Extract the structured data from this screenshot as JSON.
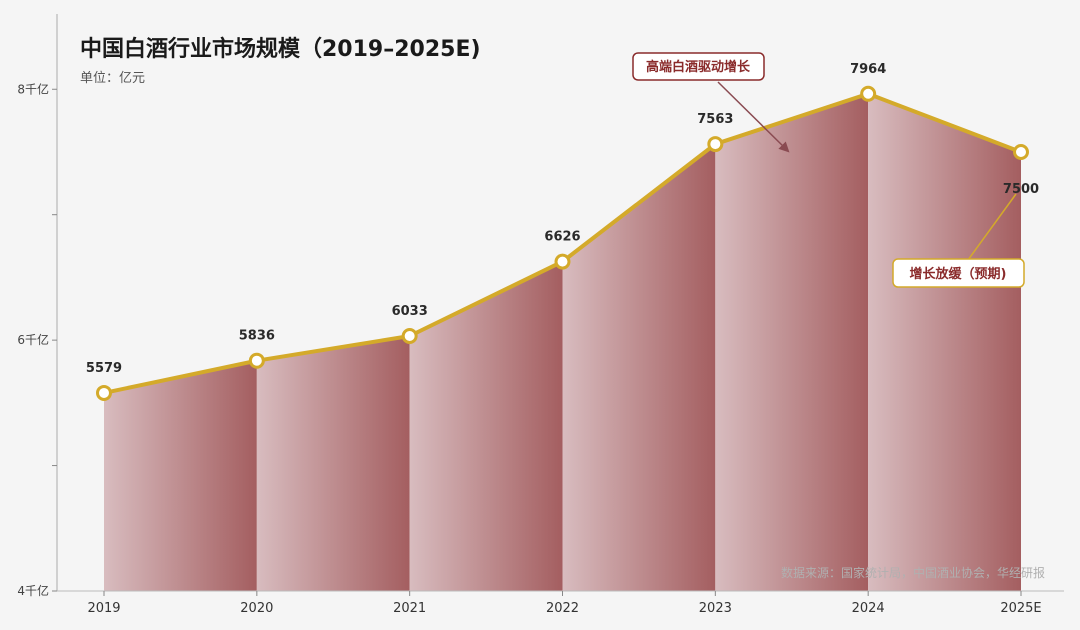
{
  "title": "中国白酒行业市场规模（2019–2025E)",
  "subtitle": "单位：亿元",
  "source": "数据来源：国家统计局，中国酒业协会，华经研报",
  "colors": {
    "line": "#d4aa2a",
    "fill_light": "#d8bcbf",
    "fill_dark": "#a45e60",
    "callout_red_border": "#8a2b2b",
    "callout_gold_border": "#d4aa2a"
  },
  "callouts": {
    "growth": "高端白酒驱动增长",
    "slowdown": "增长放缓（预期)"
  },
  "chart_data": {
    "type": "area",
    "categories": [
      "2019",
      "2020",
      "2021",
      "2022",
      "2023",
      "2024",
      "2025E"
    ],
    "values": [
      5579,
      5836,
      6033,
      6626,
      7563,
      7964,
      7500
    ],
    "value_labels": [
      "5579",
      "5836",
      "6033",
      "6626",
      "7563",
      "7964",
      "7500"
    ],
    "ylim": [
      4000,
      8600
    ],
    "yticks": [
      4000,
      6000,
      8000
    ],
    "ytick_labels": [
      "4千亿",
      "6千亿",
      "8千亿"
    ],
    "grid": false
  }
}
